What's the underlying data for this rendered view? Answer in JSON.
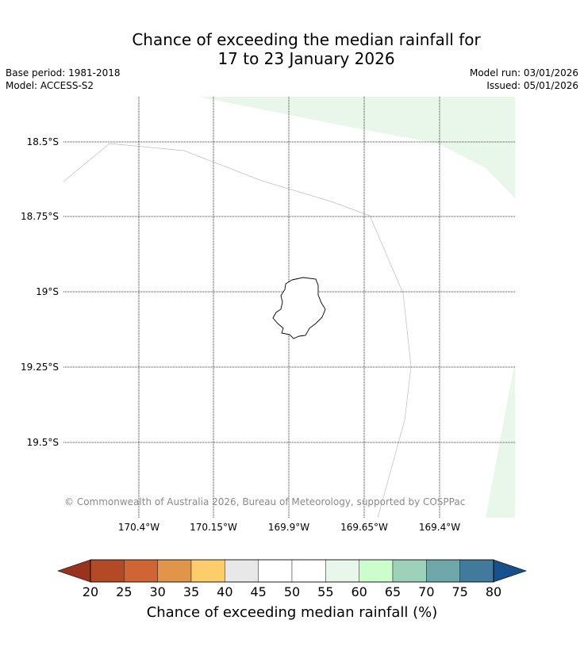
{
  "header": {
    "title_line1": "Chance of exceeding the median rainfall for",
    "title_line2": "17 to 23 January 2026",
    "base_period": "Base period: 1981-2018",
    "model": "Model: ACCESS-S2",
    "model_run": "Model run: 03/01/2026",
    "issued": "Issued: 05/01/2026"
  },
  "map": {
    "lat_labels": [
      "18.5°S",
      "18.75°S",
      "19°S",
      "19.25°S",
      "19.5°S"
    ],
    "lon_labels": [
      "170.4°W",
      "170.15°W",
      "169.9°W",
      "169.65°W",
      "169.4°W"
    ],
    "copyright": "© Commonwealth of Australia 2026, Bureau of Meteorology, supported by COSPPac",
    "shading_bin": "55-60"
  },
  "colorbar": {
    "ticks": [
      "20",
      "25",
      "30",
      "35",
      "40",
      "45",
      "50",
      "55",
      "60",
      "65",
      "70",
      "75",
      "80"
    ],
    "colors": [
      "#b34a26",
      "#cf6535",
      "#e0954a",
      "#fccd6a",
      "#e8e8e8",
      "#ffffff",
      "#ffffff",
      "#e9f6ea",
      "#ccfdcd",
      "#9dd1b9",
      "#6fa6a9",
      "#417a9b"
    ],
    "under_color": "#97331f",
    "over_color": "#17508a",
    "label": "Chance of exceeding median rainfall (%)"
  }
}
